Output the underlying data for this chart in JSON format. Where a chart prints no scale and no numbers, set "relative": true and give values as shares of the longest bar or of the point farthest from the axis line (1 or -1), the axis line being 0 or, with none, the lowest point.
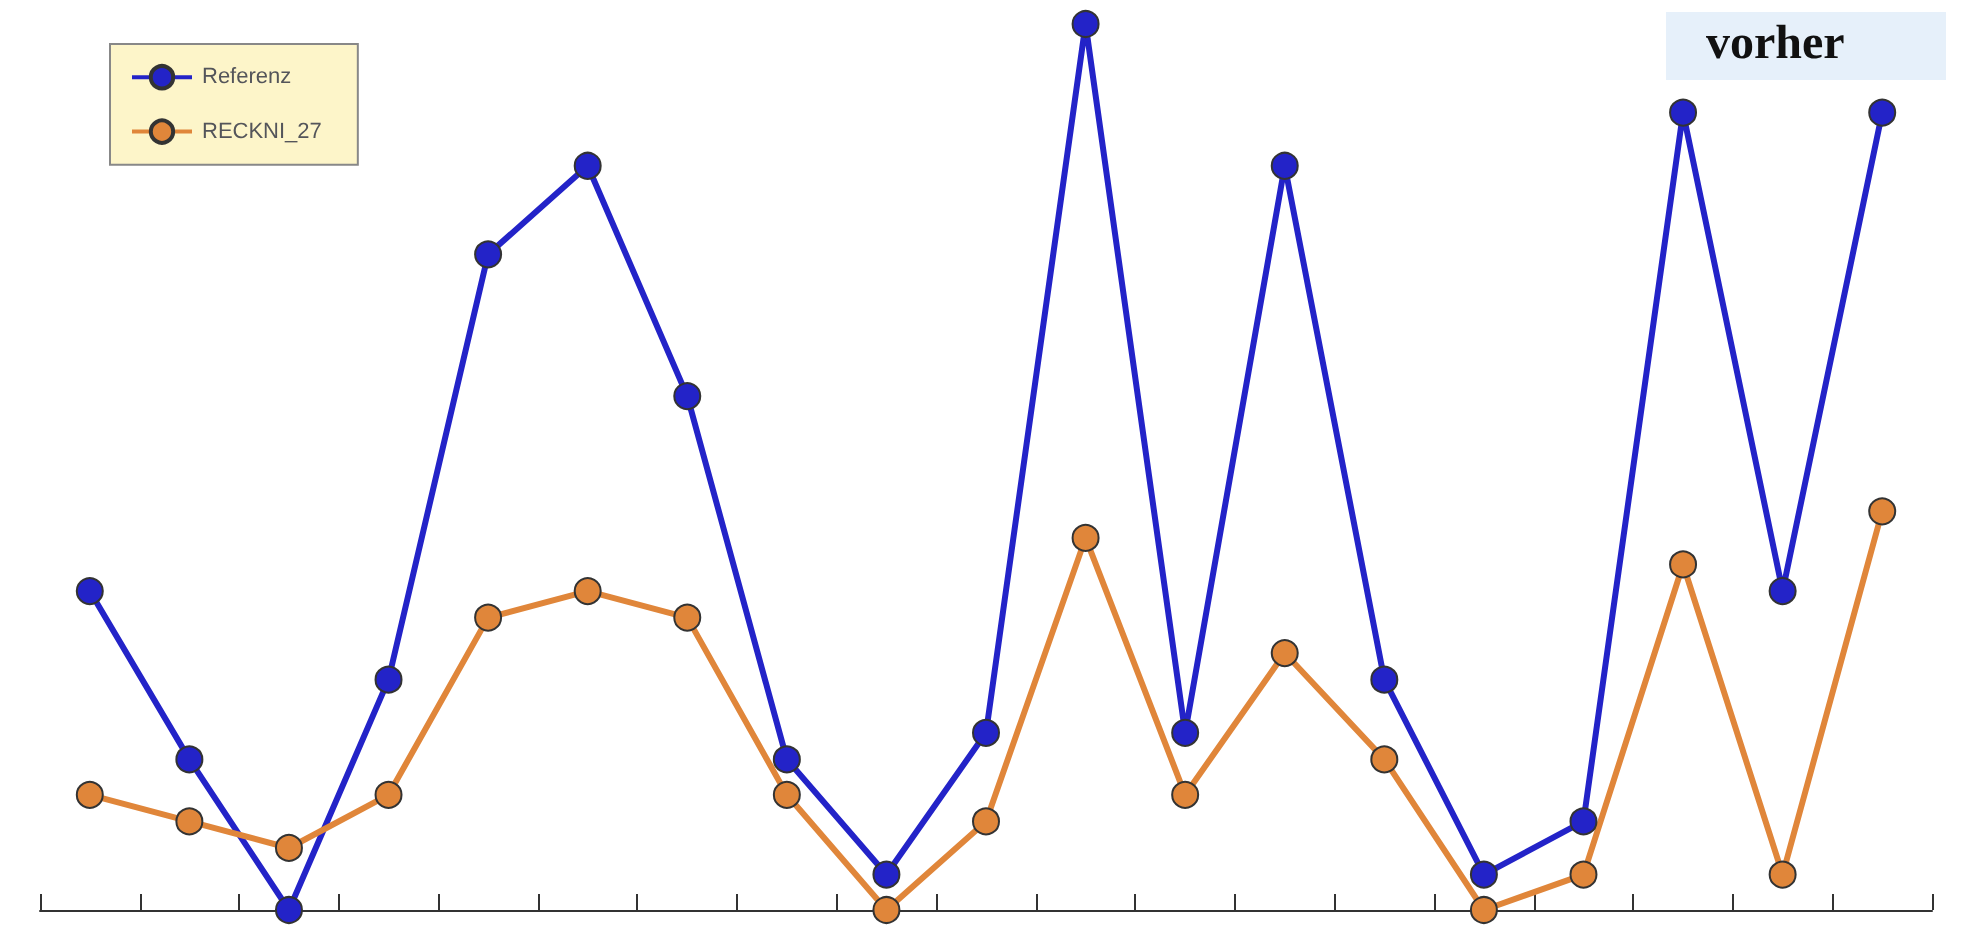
{
  "chart_data": {
    "type": "line",
    "relative": true,
    "annotations": [
      "vorher"
    ],
    "legend": "top left",
    "marker": "circle",
    "line_style": "solid",
    "grid": false,
    "categories": [
      null,
      null,
      null,
      null,
      null,
      null,
      null,
      null,
      null,
      null,
      null,
      null,
      null,
      null,
      null,
      null,
      null,
      null,
      null
    ],
    "series": [
      {
        "name": "Referenz",
        "color": "#2323c8",
        "values": [
          0.36,
          0.17,
          0,
          0.26,
          0.74,
          0.84,
          0.58,
          0.17,
          0.04,
          0.2,
          1,
          0.2,
          0.84,
          0.26,
          0.04,
          0.1,
          0.9,
          0.36,
          0.9
        ]
      },
      {
        "name": "RECKNI_27",
        "color": "#e0863a",
        "values": [
          0.13,
          0.1,
          0.07,
          0.13,
          0.33,
          0.36,
          0.33,
          0.13,
          0,
          0.1,
          0.42,
          0.13,
          0.29,
          0.17,
          0,
          0.04,
          0.39,
          0.04,
          0.45
        ]
      }
    ]
  }
}
